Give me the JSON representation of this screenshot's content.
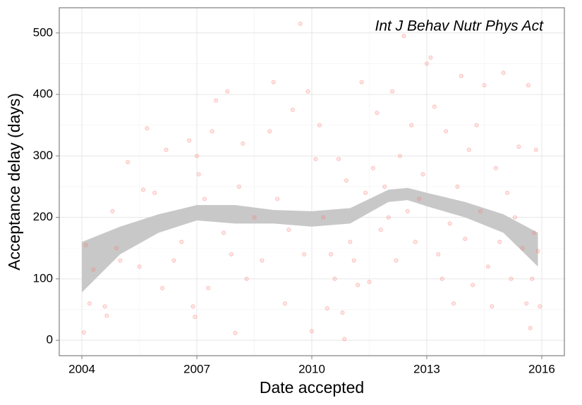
{
  "chart_data": {
    "type": "scatter",
    "annotation": "Int J Behav Nutr Phys Act",
    "x_label": "Date accepted",
    "y_label": "Acceptance delay (days)",
    "x": [
      2004.05,
      2004.1,
      2004.2,
      2004.3,
      2004.6,
      2004.65,
      2004.8,
      2004.9,
      2005.0,
      2005.2,
      2005.5,
      2005.6,
      2005.7,
      2005.9,
      2006.1,
      2006.2,
      2006.4,
      2006.6,
      2006.8,
      2006.9,
      2006.95,
      2007.0,
      2007.05,
      2007.2,
      2007.3,
      2007.4,
      2007.5,
      2007.7,
      2007.8,
      2007.9,
      2008.0,
      2008.1,
      2008.2,
      2008.3,
      2008.5,
      2008.7,
      2008.9,
      2009.0,
      2009.1,
      2009.3,
      2009.4,
      2009.5,
      2009.7,
      2009.8,
      2009.9,
      2010.0,
      2010.1,
      2010.2,
      2010.3,
      2010.4,
      2010.5,
      2010.6,
      2010.7,
      2010.8,
      2010.85,
      2010.9,
      2011.0,
      2011.1,
      2011.2,
      2011.3,
      2011.4,
      2011.5,
      2011.6,
      2011.7,
      2011.8,
      2011.9,
      2012.0,
      2012.1,
      2012.2,
      2012.3,
      2012.4,
      2012.5,
      2012.6,
      2012.7,
      2012.8,
      2012.9,
      2013.0,
      2013.1,
      2013.2,
      2013.3,
      2013.4,
      2013.5,
      2013.6,
      2013.7,
      2013.8,
      2013.9,
      2014.0,
      2014.1,
      2014.2,
      2014.3,
      2014.4,
      2014.5,
      2014.6,
      2014.7,
      2014.8,
      2014.9,
      2015.0,
      2015.1,
      2015.2,
      2015.3,
      2015.4,
      2015.5,
      2015.6,
      2015.65,
      2015.7,
      2015.8,
      2015.85,
      2015.9,
      2015.95,
      2015.75
    ],
    "values": [
      13,
      155,
      60,
      115,
      55,
      40,
      210,
      150,
      130,
      290,
      120,
      245,
      345,
      240,
      85,
      310,
      130,
      160,
      325,
      55,
      38,
      300,
      270,
      230,
      85,
      340,
      390,
      175,
      405,
      140,
      12,
      250,
      320,
      100,
      200,
      130,
      340,
      420,
      230,
      60,
      180,
      375,
      515,
      140,
      405,
      15,
      295,
      350,
      200,
      52,
      140,
      100,
      295,
      45,
      2,
      260,
      160,
      130,
      90,
      420,
      240,
      95,
      280,
      370,
      180,
      250,
      200,
      405,
      130,
      300,
      495,
      210,
      350,
      160,
      230,
      270,
      450,
      460,
      380,
      140,
      100,
      340,
      190,
      60,
      250,
      430,
      165,
      310,
      90,
      350,
      210,
      415,
      120,
      55,
      280,
      160,
      435,
      240,
      100,
      200,
      315,
      150,
      60,
      415,
      20,
      175,
      310,
      145,
      55,
      100
    ],
    "color": "#f8766d",
    "band": {
      "x": [
        2004.0,
        2005.0,
        2006.0,
        2007.0,
        2008.0,
        2009.0,
        2010.0,
        2011.0,
        2012.0,
        2012.5,
        2013.0,
        2014.0,
        2015.0,
        2015.9
      ],
      "lower": [
        78,
        140,
        175,
        195,
        190,
        190,
        185,
        190,
        225,
        228,
        218,
        200,
        175,
        120
      ],
      "upper": [
        160,
        185,
        205,
        220,
        220,
        212,
        210,
        215,
        245,
        248,
        240,
        225,
        205,
        175
      ],
      "color": "#c8c8c8"
    },
    "xlim": [
      2003.41,
      2016.59
    ],
    "ylim": [
      -25,
      541
    ],
    "xticks": [
      2004,
      2007,
      2010,
      2013,
      2016
    ],
    "yticks": [
      0,
      100,
      200,
      300,
      400,
      500
    ],
    "x_minor_ticks": [
      2005.5,
      2008.5,
      2011.5,
      2014.5
    ],
    "y_minor_ticks": [
      50,
      150,
      250,
      350,
      450
    ],
    "grid": true
  }
}
